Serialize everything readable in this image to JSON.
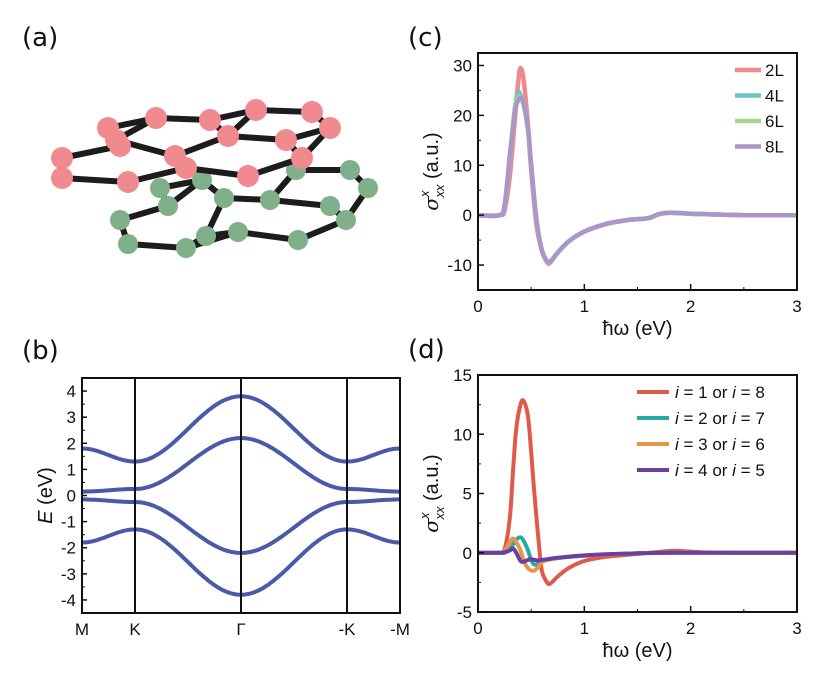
{
  "figure": {
    "panel_labels": [
      "(a)",
      "(b)",
      "(c)",
      "(d)"
    ]
  },
  "structure": {
    "description_colors": {
      "top_layer": "#f08a8f",
      "bottom_layer": "#7fb08a",
      "bond": "#1c1c1c"
    }
  },
  "chart_data": [
    {
      "panel": "(b)",
      "type": "line",
      "title": "",
      "xlabel": "",
      "ylabel_italic": "E",
      "ylabel_rest": " (eV)",
      "x_tick_labels": [
        "M",
        "K",
        "Γ",
        "-K",
        "-M"
      ],
      "x_tick_positions": [
        0,
        0.5,
        1.5,
        2.5,
        3.0
      ],
      "ylim": [
        -4.5,
        4.5
      ],
      "yticks": [
        4,
        3,
        2,
        1,
        0,
        -1,
        -2,
        -3,
        -4
      ],
      "vertical_lines_at": [
        0.5,
        1.5,
        2.5
      ],
      "color": "#4a5aa8",
      "series": [
        {
          "name": "band1",
          "x": [
            0,
            0.5,
            1.5,
            2.5,
            3.0
          ],
          "values": [
            1.8,
            1.3,
            3.8,
            1.3,
            1.8
          ]
        },
        {
          "name": "band2",
          "x": [
            0,
            0.5,
            1.5,
            2.5,
            3.0
          ],
          "values": [
            0.15,
            0.25,
            2.2,
            0.25,
            0.15
          ]
        },
        {
          "name": "band3",
          "x": [
            0,
            0.5,
            1.5,
            2.5,
            3.0
          ],
          "values": [
            -0.15,
            -0.25,
            -2.2,
            -0.25,
            -0.15
          ]
        },
        {
          "name": "band4",
          "x": [
            0,
            0.5,
            1.5,
            2.5,
            3.0
          ],
          "values": [
            -1.8,
            -1.3,
            -3.8,
            -1.3,
            -1.8
          ]
        }
      ]
    },
    {
      "panel": "(c)",
      "type": "line",
      "xlabel": "ħω (eV)",
      "ylabel_sym": "σ",
      "ylabel_sup": "x",
      "ylabel_sub": "xx",
      "ylabel_rest": " (a.u.)",
      "xlim": [
        0,
        3
      ],
      "ylim": [
        -15,
        32.5
      ],
      "xticks": [
        0,
        1,
        2,
        3
      ],
      "yticks": [
        30,
        20,
        10,
        0,
        -10
      ],
      "legend_position": "top-right",
      "x": [
        0,
        0.2,
        0.25,
        0.3,
        0.35,
        0.38,
        0.4,
        0.43,
        0.47,
        0.5,
        0.55,
        0.6,
        0.65,
        0.68,
        0.75,
        0.85,
        1.0,
        1.2,
        1.4,
        1.6,
        1.7,
        1.8,
        2.0,
        2.5,
        3.0
      ],
      "series": [
        {
          "name": "2L",
          "color": "#f08a8a",
          "values": [
            0,
            0,
            1,
            8,
            20,
            27,
            29.5,
            27,
            18,
            9,
            -2,
            -7,
            -9.5,
            -9.5,
            -7.5,
            -5.3,
            -3.3,
            -1.8,
            -1.0,
            -0.6,
            0.2,
            0.5,
            0.3,
            0,
            0
          ]
        },
        {
          "name": "4L",
          "color": "#6cc4c4",
          "values": [
            0,
            0,
            2,
            12,
            22,
            24.5,
            24,
            22,
            17,
            10,
            -1,
            -7,
            -9.3,
            -9.4,
            -7.5,
            -5.3,
            -3.3,
            -1.8,
            -1.0,
            -0.6,
            0.2,
            0.5,
            0.3,
            0,
            0
          ]
        },
        {
          "name": "6L",
          "color": "#a9d48f",
          "values": [
            0,
            0,
            2,
            12,
            21.5,
            23.5,
            23.5,
            22,
            17,
            10,
            -1,
            -7,
            -9.3,
            -9.4,
            -7.5,
            -5.3,
            -3.3,
            -1.8,
            -1.0,
            -0.6,
            0.2,
            0.5,
            0.3,
            0,
            0
          ]
        },
        {
          "name": "8L",
          "color": "#ab96c9",
          "values": [
            0,
            0,
            2,
            12,
            21,
            23,
            23.5,
            22.5,
            17.5,
            10,
            -1,
            -7,
            -9.2,
            -9.3,
            -7.5,
            -5.3,
            -3.3,
            -1.8,
            -1.0,
            -0.6,
            0.2,
            0.5,
            0.3,
            0,
            0
          ]
        }
      ]
    },
    {
      "panel": "(d)",
      "type": "line",
      "xlabel": "ħω (eV)",
      "ylabel_sym": "σ",
      "ylabel_sup": "x",
      "ylabel_sub": "xx",
      "ylabel_rest": " (a.u.)",
      "xlim": [
        0,
        3
      ],
      "ylim": [
        -5,
        15
      ],
      "xticks": [
        0,
        1,
        2,
        3
      ],
      "yticks": [
        15,
        10,
        5,
        0,
        -5
      ],
      "legend_position": "top-right",
      "x": [
        0,
        0.2,
        0.25,
        0.3,
        0.33,
        0.36,
        0.4,
        0.43,
        0.47,
        0.5,
        0.53,
        0.57,
        0.6,
        0.65,
        0.68,
        0.75,
        0.85,
        1.0,
        1.2,
        1.5,
        1.8,
        1.9,
        2.1,
        2.5,
        3.0
      ],
      "series": [
        {
          "name": "i = 1 or i = 8",
          "legend_parts": [
            "i",
            " = 1 or ",
            "i",
            " = 8"
          ],
          "color": "#e05a4a",
          "values": [
            0,
            0,
            0.3,
            3,
            7,
            10.5,
            12.5,
            12.8,
            11.5,
            8.5,
            5,
            1,
            -1.5,
            -2.5,
            -2.6,
            -2,
            -1.3,
            -0.7,
            -0.35,
            -0.1,
            0.15,
            0.15,
            0.05,
            0,
            0
          ]
        },
        {
          "name": "i = 2 or i = 7",
          "legend_parts": [
            "i",
            " = 2 or ",
            "i",
            " = 7"
          ],
          "color": "#2aa8a8",
          "values": [
            0,
            0,
            0,
            0.3,
            0.7,
            1.1,
            1.3,
            1.0,
            0.2,
            -0.6,
            -1.0,
            -0.9,
            -0.7,
            -0.6,
            -0.55,
            -0.45,
            -0.35,
            -0.25,
            -0.15,
            -0.05,
            0,
            0,
            0,
            0,
            0
          ]
        },
        {
          "name": "i = 3 or i = 6",
          "legend_parts": [
            "i",
            " = 3 or ",
            "i",
            " = 6"
          ],
          "color": "#e8954a",
          "values": [
            0,
            0,
            0.2,
            0.9,
            1.2,
            0.9,
            0.2,
            -0.7,
            -1.3,
            -1.5,
            -1.5,
            -1.2,
            -0.8,
            -0.6,
            -0.55,
            -0.45,
            -0.35,
            -0.25,
            -0.15,
            -0.05,
            0,
            0,
            0,
            0,
            0
          ]
        },
        {
          "name": "i = 4 or i = 5",
          "legend_parts": [
            "i",
            " = 4 or ",
            "i",
            " = 5"
          ],
          "color": "#6a3fa0",
          "values": [
            0,
            0,
            0.05,
            0.2,
            0.35,
            0,
            -0.7,
            -0.75,
            -0.6,
            -0.55,
            -0.6,
            -0.65,
            -0.6,
            -0.55,
            -0.5,
            -0.42,
            -0.33,
            -0.22,
            -0.12,
            -0.05,
            0,
            0,
            0,
            0,
            0
          ]
        }
      ]
    }
  ]
}
